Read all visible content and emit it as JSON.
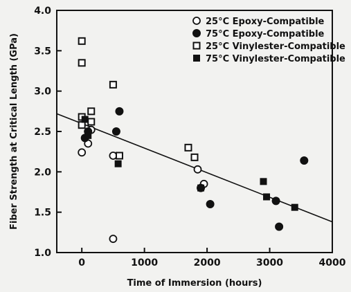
{
  "chart_data": {
    "type": "scatter",
    "title": "",
    "xlabel": "Time of Immersion (hours)",
    "ylabel": "Fiber Strength at Critical Length (GPa)",
    "xlim": [
      -400,
      4000
    ],
    "ylim": [
      1.0,
      4.0
    ],
    "x_ticks": [
      0,
      1000,
      2000,
      3000,
      4000
    ],
    "y_ticks": [
      1.0,
      1.5,
      2.0,
      2.5,
      3.0,
      3.5,
      4.0
    ],
    "grid": false,
    "legend_position": "top-right",
    "series": [
      {
        "name": "25°C Epoxy-Compatible",
        "marker": "open-circle",
        "points": [
          {
            "x": 0,
            "y": 2.24
          },
          {
            "x": 100,
            "y": 2.35
          },
          {
            "x": 150,
            "y": 2.52
          },
          {
            "x": 500,
            "y": 2.2
          },
          {
            "x": 500,
            "y": 1.17
          },
          {
            "x": 1850,
            "y": 2.03
          },
          {
            "x": 1950,
            "y": 1.85
          }
        ]
      },
      {
        "name": "75°C Epoxy-Compatible",
        "marker": "filled-circle",
        "points": [
          {
            "x": 50,
            "y": 2.42
          },
          {
            "x": 100,
            "y": 2.5
          },
          {
            "x": 550,
            "y": 2.5
          },
          {
            "x": 600,
            "y": 2.75
          },
          {
            "x": 1900,
            "y": 1.8
          },
          {
            "x": 2050,
            "y": 1.6
          },
          {
            "x": 3100,
            "y": 1.64
          },
          {
            "x": 3150,
            "y": 1.32
          },
          {
            "x": 3550,
            "y": 2.14
          }
        ]
      },
      {
        "name": "25°C Vinylester-Compatible",
        "marker": "open-square",
        "points": [
          {
            "x": 0,
            "y": 3.62
          },
          {
            "x": 0,
            "y": 3.35
          },
          {
            "x": 0,
            "y": 2.68
          },
          {
            "x": 0,
            "y": 2.58
          },
          {
            "x": 150,
            "y": 2.75
          },
          {
            "x": 150,
            "y": 2.62
          },
          {
            "x": 500,
            "y": 3.08
          },
          {
            "x": 600,
            "y": 2.2
          },
          {
            "x": 1700,
            "y": 2.3
          },
          {
            "x": 1800,
            "y": 2.18
          }
        ]
      },
      {
        "name": "75°C Vinylester-Compatible",
        "marker": "filled-square",
        "points": [
          {
            "x": 50,
            "y": 2.65
          },
          {
            "x": 100,
            "y": 2.45
          },
          {
            "x": 580,
            "y": 2.1
          },
          {
            "x": 1900,
            "y": 1.8
          },
          {
            "x": 2900,
            "y": 1.88
          },
          {
            "x": 2950,
            "y": 1.69
          },
          {
            "x": 3400,
            "y": 1.56
          }
        ]
      }
    ],
    "trend_line": {
      "x": [
        -400,
        4000
      ],
      "y": [
        2.72,
        1.38
      ]
    }
  }
}
